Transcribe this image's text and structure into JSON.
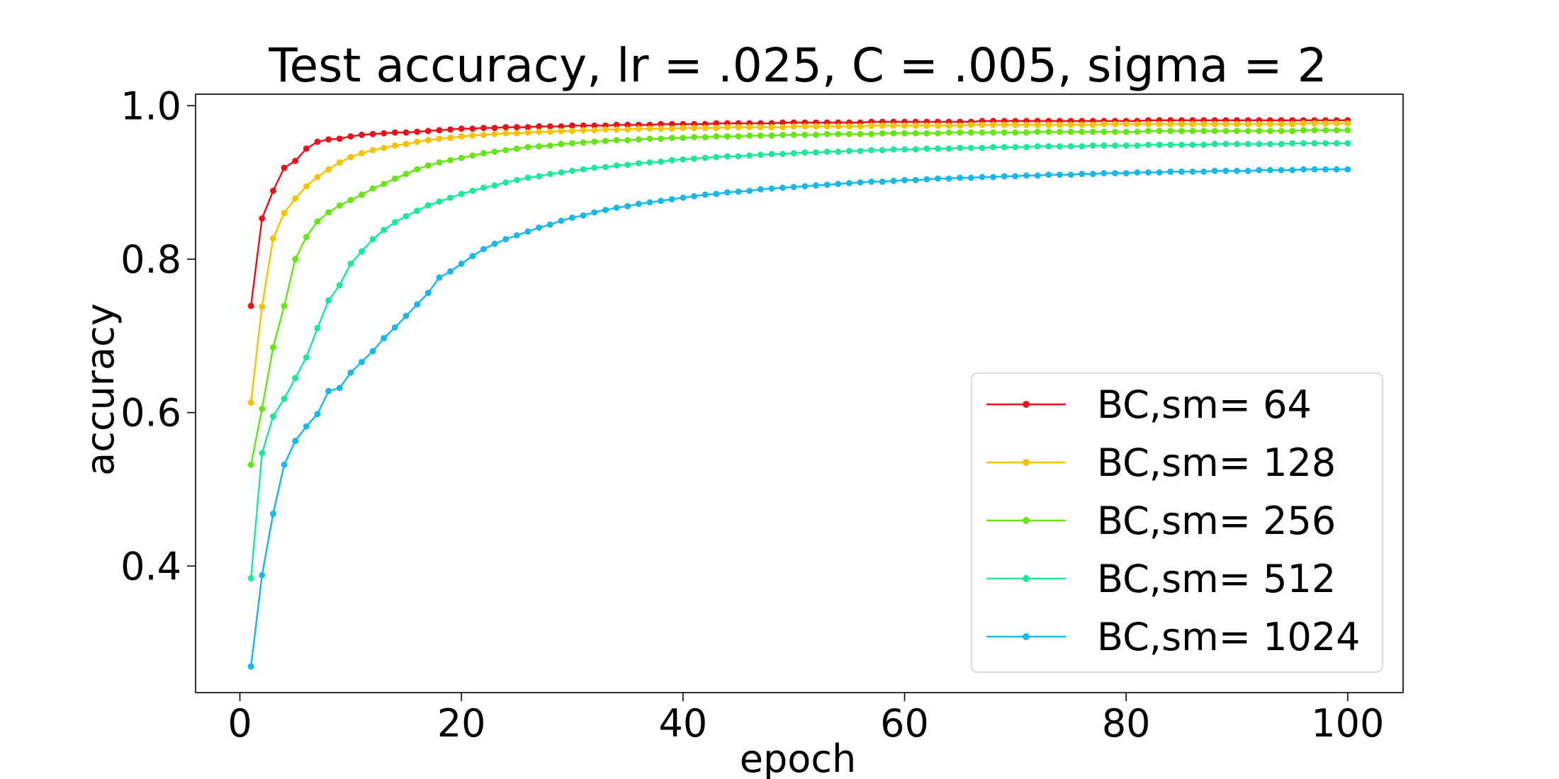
{
  "chart_data": {
    "type": "line",
    "title": "Test accuracy, lr = .025, C = .005, sigma = 2",
    "xlabel": "epoch",
    "ylabel": "accuracy",
    "xlim": [
      -4,
      105
    ],
    "ylim": [
      0.235,
      1.015
    ],
    "xticks": [
      0,
      20,
      40,
      60,
      80,
      100
    ],
    "yticks": [
      0.4,
      0.6,
      0.8,
      1.0
    ],
    "xtick_labels": [
      "0",
      "20",
      "40",
      "60",
      "80",
      "100"
    ],
    "ytick_labels": [
      "0.4",
      "0.6",
      "0.8",
      "1.0"
    ],
    "grid": false,
    "legend_position": "lower-right",
    "x": {
      "start": 1,
      "end": 100,
      "step": 1
    },
    "series": [
      {
        "name": "BC,sm= 64",
        "color": "#e8141c",
        "values": [
          0.739,
          0.853,
          0.889,
          0.919,
          0.928,
          0.944,
          0.953,
          0.956,
          0.957,
          0.96,
          0.962,
          0.963,
          0.964,
          0.965,
          0.965,
          0.966,
          0.967,
          0.968,
          0.969,
          0.97,
          0.97,
          0.971,
          0.971,
          0.972,
          0.972,
          0.972,
          0.973,
          0.973,
          0.973,
          0.974,
          0.974,
          0.974,
          0.974,
          0.975,
          0.975,
          0.975,
          0.975,
          0.976,
          0.976,
          0.976,
          0.976,
          0.976,
          0.977,
          0.977,
          0.977,
          0.977,
          0.977,
          0.977,
          0.978,
          0.978,
          0.978,
          0.978,
          0.978,
          0.978,
          0.978,
          0.978,
          0.979,
          0.979,
          0.979,
          0.979,
          0.979,
          0.979,
          0.979,
          0.979,
          0.979,
          0.979,
          0.98,
          0.98,
          0.98,
          0.98,
          0.98,
          0.98,
          0.98,
          0.98,
          0.98,
          0.98,
          0.98,
          0.98,
          0.98,
          0.98,
          0.98,
          0.981,
          0.981,
          0.981,
          0.981,
          0.981,
          0.981,
          0.981,
          0.981,
          0.981,
          0.981,
          0.981,
          0.981,
          0.981,
          0.981,
          0.981,
          0.981,
          0.981,
          0.981,
          0.981
        ]
      },
      {
        "name": "BC,sm= 128",
        "color": "#f7c200",
        "values": [
          0.613,
          0.738,
          0.827,
          0.86,
          0.879,
          0.895,
          0.907,
          0.917,
          0.926,
          0.933,
          0.938,
          0.942,
          0.945,
          0.948,
          0.95,
          0.953,
          0.955,
          0.957,
          0.958,
          0.96,
          0.961,
          0.962,
          0.963,
          0.964,
          0.964,
          0.965,
          0.966,
          0.966,
          0.967,
          0.967,
          0.968,
          0.968,
          0.969,
          0.969,
          0.969,
          0.97,
          0.97,
          0.97,
          0.97,
          0.971,
          0.971,
          0.971,
          0.971,
          0.972,
          0.972,
          0.972,
          0.972,
          0.972,
          0.972,
          0.973,
          0.973,
          0.973,
          0.973,
          0.973,
          0.973,
          0.973,
          0.974,
          0.974,
          0.974,
          0.974,
          0.974,
          0.974,
          0.974,
          0.974,
          0.974,
          0.975,
          0.975,
          0.975,
          0.975,
          0.975,
          0.975,
          0.975,
          0.975,
          0.975,
          0.975,
          0.975,
          0.975,
          0.976,
          0.976,
          0.976,
          0.976,
          0.976,
          0.976,
          0.976,
          0.976,
          0.976,
          0.976,
          0.976,
          0.976,
          0.976,
          0.976,
          0.976,
          0.976,
          0.976,
          0.976,
          0.977,
          0.977,
          0.977,
          0.977,
          0.977
        ]
      },
      {
        "name": "BC,sm= 256",
        "color": "#66e616",
        "values": [
          0.532,
          0.605,
          0.685,
          0.739,
          0.8,
          0.829,
          0.849,
          0.861,
          0.87,
          0.877,
          0.884,
          0.892,
          0.898,
          0.905,
          0.911,
          0.917,
          0.922,
          0.926,
          0.929,
          0.932,
          0.935,
          0.938,
          0.94,
          0.942,
          0.944,
          0.946,
          0.947,
          0.948,
          0.95,
          0.951,
          0.952,
          0.953,
          0.954,
          0.955,
          0.955,
          0.956,
          0.957,
          0.957,
          0.958,
          0.958,
          0.959,
          0.959,
          0.96,
          0.96,
          0.96,
          0.961,
          0.961,
          0.961,
          0.962,
          0.962,
          0.962,
          0.962,
          0.963,
          0.963,
          0.963,
          0.963,
          0.963,
          0.964,
          0.964,
          0.964,
          0.964,
          0.964,
          0.964,
          0.965,
          0.965,
          0.965,
          0.965,
          0.965,
          0.965,
          0.965,
          0.965,
          0.966,
          0.966,
          0.966,
          0.966,
          0.966,
          0.966,
          0.966,
          0.966,
          0.966,
          0.966,
          0.967,
          0.967,
          0.967,
          0.967,
          0.967,
          0.967,
          0.967,
          0.967,
          0.967,
          0.967,
          0.967,
          0.967,
          0.967,
          0.967,
          0.968,
          0.968,
          0.968,
          0.968,
          0.968
        ]
      },
      {
        "name": "BC,sm= 512",
        "color": "#1de89a",
        "values": [
          0.384,
          0.547,
          0.595,
          0.618,
          0.645,
          0.672,
          0.71,
          0.746,
          0.766,
          0.794,
          0.81,
          0.826,
          0.838,
          0.848,
          0.856,
          0.863,
          0.87,
          0.875,
          0.88,
          0.885,
          0.889,
          0.893,
          0.896,
          0.9,
          0.903,
          0.906,
          0.908,
          0.911,
          0.913,
          0.915,
          0.917,
          0.919,
          0.92,
          0.922,
          0.923,
          0.925,
          0.926,
          0.927,
          0.929,
          0.93,
          0.931,
          0.932,
          0.933,
          0.934,
          0.934,
          0.935,
          0.936,
          0.937,
          0.937,
          0.938,
          0.939,
          0.939,
          0.94,
          0.94,
          0.941,
          0.941,
          0.942,
          0.942,
          0.943,
          0.943,
          0.943,
          0.944,
          0.944,
          0.944,
          0.945,
          0.945,
          0.945,
          0.946,
          0.946,
          0.946,
          0.946,
          0.947,
          0.947,
          0.947,
          0.947,
          0.947,
          0.948,
          0.948,
          0.948,
          0.948,
          0.948,
          0.949,
          0.949,
          0.949,
          0.949,
          0.949,
          0.949,
          0.95,
          0.95,
          0.95,
          0.95,
          0.95,
          0.95,
          0.95,
          0.951,
          0.951,
          0.951,
          0.951,
          0.951,
          0.951
        ]
      },
      {
        "name": "BC,sm= 1024",
        "color": "#1ab8e8",
        "values": [
          0.269,
          0.388,
          0.468,
          0.532,
          0.563,
          0.582,
          0.598,
          0.628,
          0.632,
          0.652,
          0.666,
          0.68,
          0.697,
          0.711,
          0.726,
          0.741,
          0.756,
          0.776,
          0.784,
          0.794,
          0.804,
          0.813,
          0.82,
          0.826,
          0.831,
          0.836,
          0.841,
          0.845,
          0.85,
          0.854,
          0.857,
          0.861,
          0.864,
          0.867,
          0.869,
          0.872,
          0.874,
          0.876,
          0.878,
          0.88,
          0.882,
          0.884,
          0.885,
          0.887,
          0.888,
          0.889,
          0.891,
          0.892,
          0.893,
          0.894,
          0.895,
          0.896,
          0.897,
          0.898,
          0.899,
          0.9,
          0.901,
          0.901,
          0.902,
          0.903,
          0.903,
          0.904,
          0.905,
          0.905,
          0.906,
          0.906,
          0.907,
          0.907,
          0.908,
          0.908,
          0.909,
          0.909,
          0.91,
          0.91,
          0.91,
          0.911,
          0.911,
          0.912,
          0.912,
          0.912,
          0.913,
          0.913,
          0.913,
          0.914,
          0.914,
          0.914,
          0.914,
          0.915,
          0.915,
          0.915,
          0.915,
          0.916,
          0.916,
          0.916,
          0.916,
          0.917,
          0.917,
          0.917,
          0.917,
          0.917
        ]
      }
    ]
  }
}
